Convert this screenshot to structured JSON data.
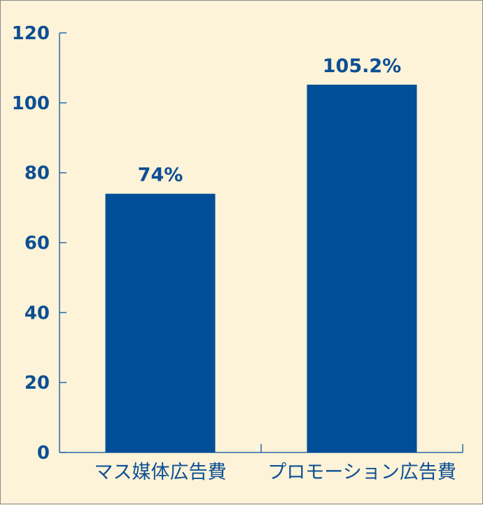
{
  "chart_data": {
    "type": "bar",
    "categories": [
      "マス媒体広告費",
      "プロモーション広告費"
    ],
    "values": [
      74,
      105.2
    ],
    "data_labels": [
      "74%",
      "105.2%"
    ],
    "title": "",
    "xlabel": "",
    "ylabel": "",
    "ylim": [
      0,
      120
    ],
    "yticks": [
      "0",
      "20",
      "40",
      "60",
      "80",
      "100",
      "120"
    ],
    "grid": false,
    "legend": "none",
    "colors": {
      "bar": "#004e97",
      "axis": "#2a6aa8",
      "text": "#0d4f93",
      "background": "#fdf3d8"
    }
  }
}
